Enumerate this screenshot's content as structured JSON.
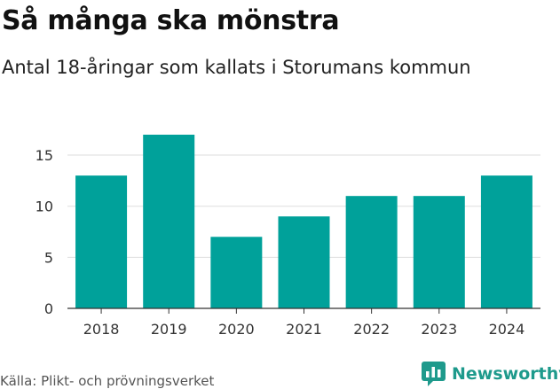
{
  "header": {
    "title": "Så många ska mönstra",
    "subtitle": "Antal 18-åringar som kallats i Storumans kommun"
  },
  "footer": {
    "source": "Källa: Plikt- och prövningsverket",
    "brand": "Newsworthy"
  },
  "colors": {
    "bar": "#00a19a",
    "gridline": "#dddddd",
    "axis": "#333333",
    "brand": "#1e9a8c"
  },
  "chart_data": {
    "type": "bar",
    "title": "Så många ska mönstra",
    "subtitle": "Antal 18-åringar som kallats i Storumans kommun",
    "xlabel": "",
    "ylabel": "",
    "categories": [
      "2018",
      "2019",
      "2020",
      "2021",
      "2022",
      "2023",
      "2024"
    ],
    "values": [
      13,
      17,
      7,
      9,
      11,
      11,
      13
    ],
    "ylim": [
      0,
      17
    ],
    "yticks": [
      0,
      5,
      10,
      15
    ],
    "grid": true,
    "legend": "none"
  }
}
